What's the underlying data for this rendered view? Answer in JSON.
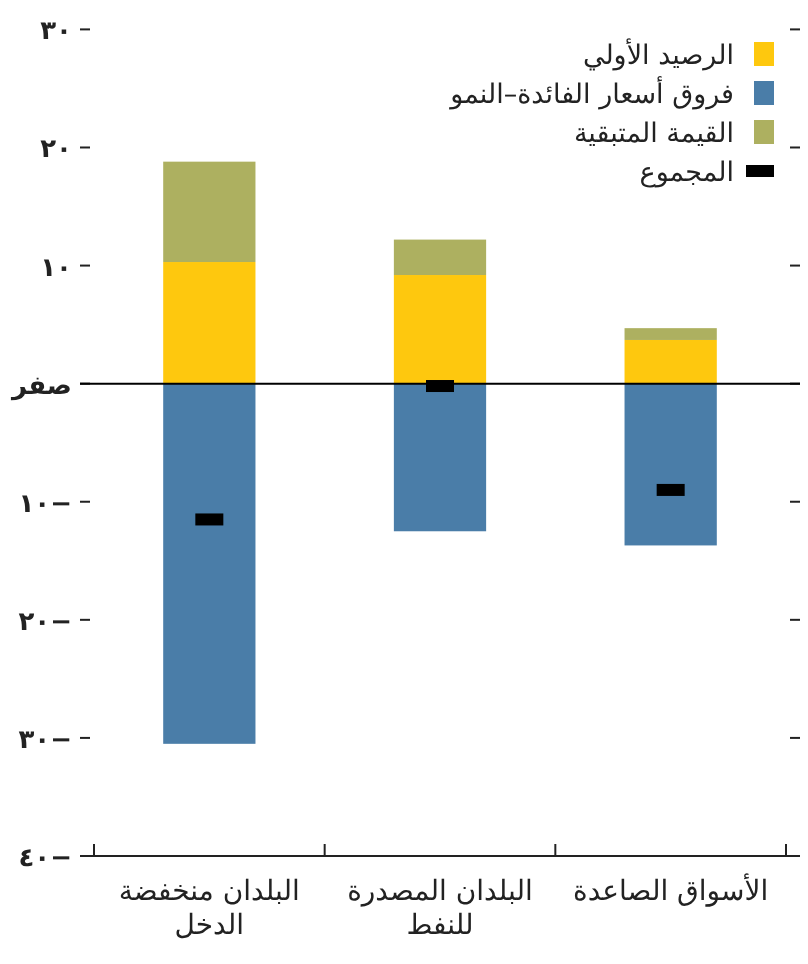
{
  "chart_data": {
    "type": "bar",
    "stacked": true,
    "categories": [
      "البلدان منخفضة الدخل",
      "البلدان المصدرة للنفط",
      "الأسواق الصاعدة"
    ],
    "series": [
      {
        "name": "الرصيد الأولي",
        "color": "#fec80e",
        "values": [
          10.3,
          9.2,
          3.7
        ]
      },
      {
        "name": "فروق أسعار الفائدة–النمو",
        "color": "#4a7da8",
        "values": [
          -30.5,
          -12.5,
          -13.7
        ]
      },
      {
        "name": "القيمة المتبقية",
        "color": "#adb060",
        "values": [
          8.5,
          3.0,
          1.0
        ]
      },
      {
        "name": "المجموع",
        "type": "scatter",
        "color": "#000000",
        "values": [
          -11.5,
          -0.2,
          -9.0
        ]
      }
    ],
    "ylim": [
      -40,
      30
    ],
    "yticks": [
      {
        "value": 30,
        "label": "٣٠"
      },
      {
        "value": 20,
        "label": "٢٠"
      },
      {
        "value": 10,
        "label": "١٠"
      },
      {
        "value": 0,
        "label": "صفر"
      },
      {
        "value": -10,
        "label": "١٠−"
      },
      {
        "value": -20,
        "label": "٢٠−"
      },
      {
        "value": -30,
        "label": "٣٠−"
      },
      {
        "value": -40,
        "label": "٤٠−"
      }
    ],
    "ref_lines": [
      {
        "axis": "y",
        "value": 0,
        "color": "#000000"
      }
    ],
    "grid": false,
    "legend": "top right"
  }
}
